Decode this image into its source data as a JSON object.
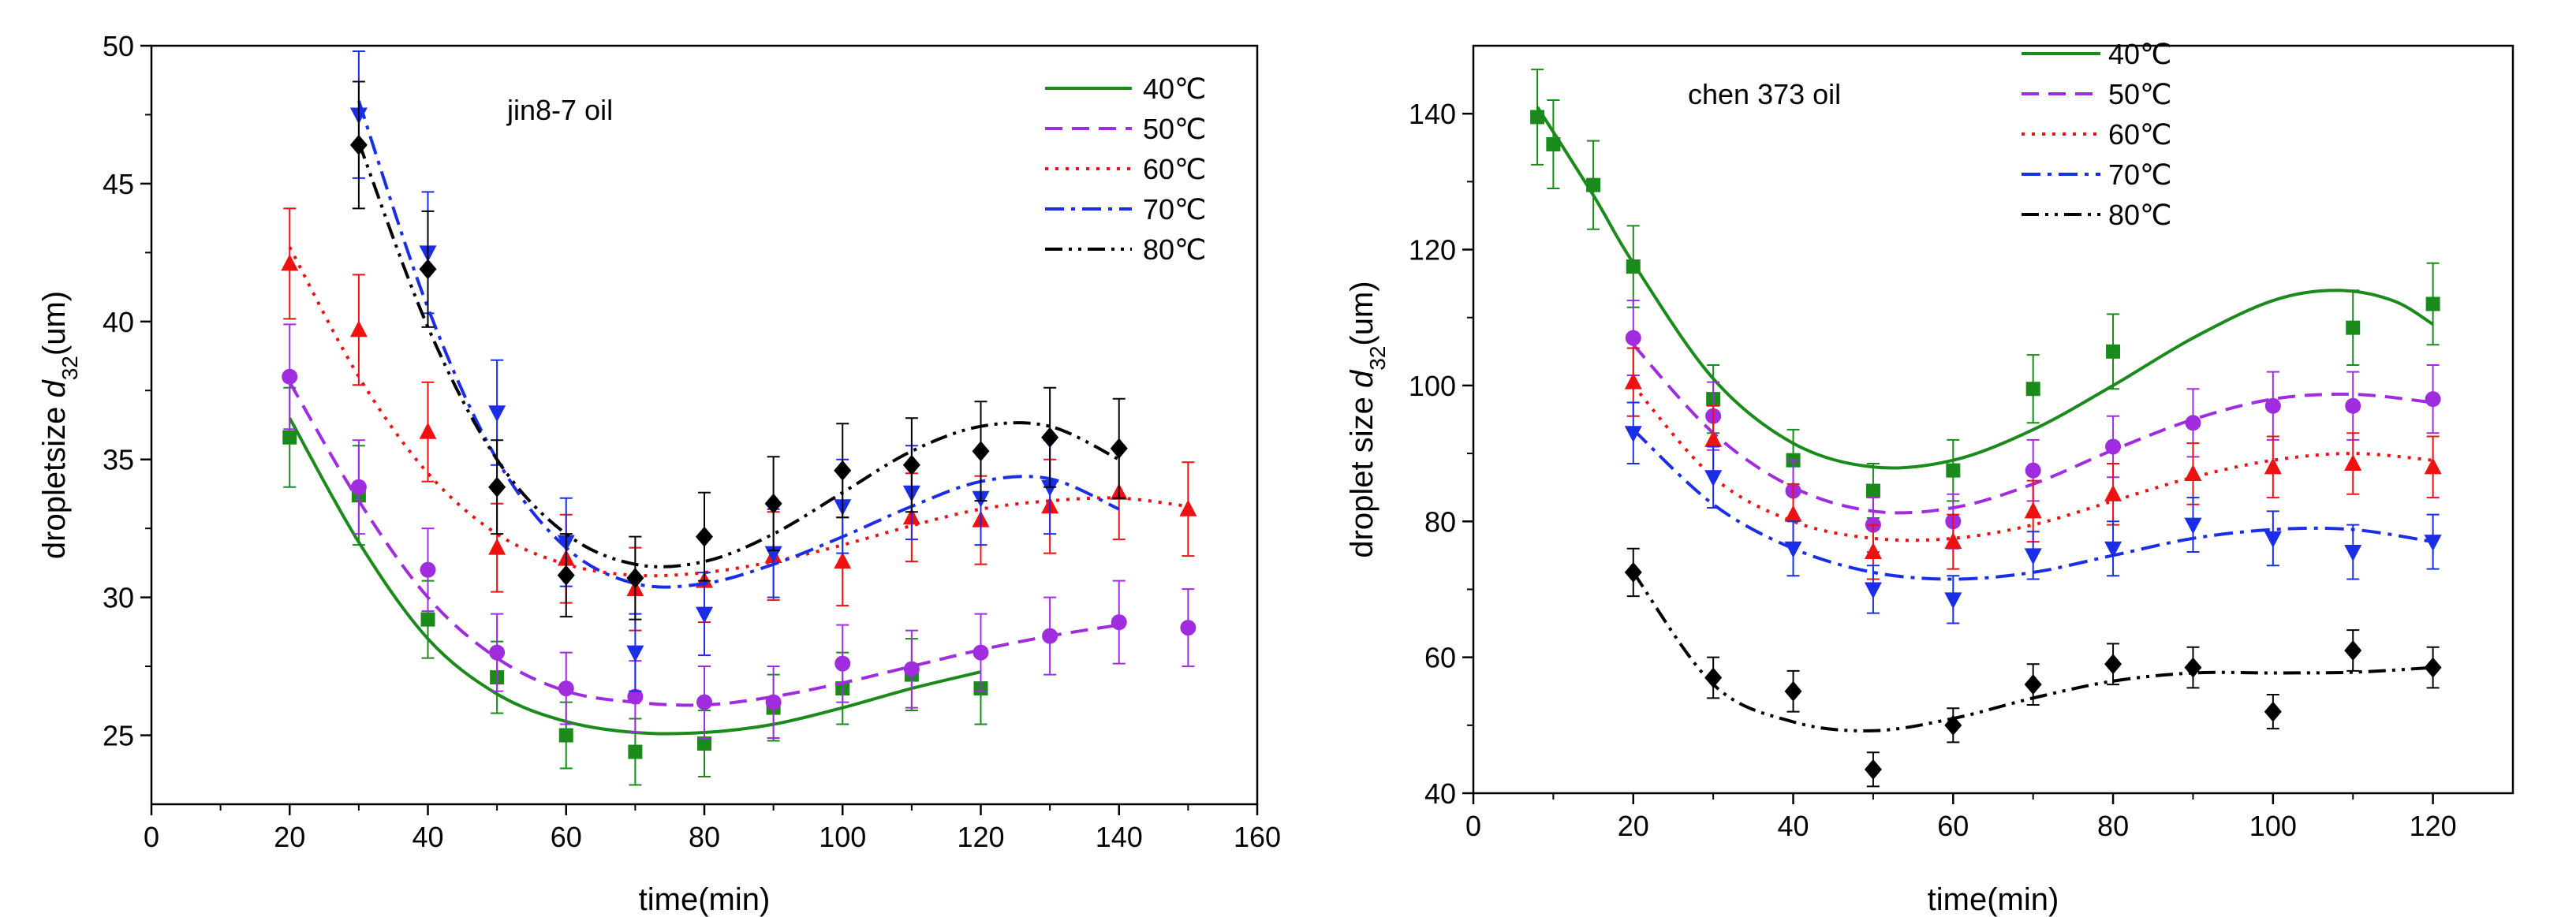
{
  "chart_data": [
    {
      "type": "scatter",
      "title": "",
      "annotation": "jin8-7 oil",
      "xlabel": "time(min)",
      "ylabel_prefix": "dropletsize ",
      "ylabel_var": "d",
      "ylabel_sub": "32",
      "ylabel_suffix": "(um)",
      "xlim": [
        0,
        160
      ],
      "ylim": [
        22.5,
        50
      ],
      "xticks": [
        0,
        20,
        40,
        60,
        80,
        100,
        120,
        140,
        160
      ],
      "yticks": [
        25,
        30,
        35,
        40,
        45,
        50
      ],
      "legend_position": "top-right",
      "series": [
        {
          "name": "40℃",
          "color": "#1a8a1a",
          "marker": "square",
          "line": "solid",
          "x": [
            20,
            30,
            40,
            50,
            60,
            70,
            80,
            90,
            100,
            110,
            120
          ],
          "y": [
            35.8,
            33.7,
            29.2,
            27.1,
            25.0,
            24.4,
            24.7,
            26.0,
            26.7,
            27.2,
            26.7
          ],
          "err": [
            1.8,
            1.8,
            1.4,
            1.3,
            1.2,
            1.2,
            1.2,
            1.2,
            1.3,
            1.3,
            1.3
          ],
          "fit_x": [
            20,
            30,
            40,
            50,
            60,
            70,
            80,
            90,
            100,
            110,
            120
          ],
          "fit_y": [
            36.5,
            32.0,
            28.5,
            26.5,
            25.5,
            25.1,
            25.1,
            25.4,
            26.0,
            26.7,
            27.3
          ]
        },
        {
          "name": "50℃",
          "color": "#a02ce0",
          "marker": "circle",
          "line": "dash",
          "x": [
            20,
            30,
            40,
            50,
            60,
            70,
            80,
            90,
            100,
            110,
            120,
            130,
            140,
            150
          ],
          "y": [
            38.0,
            34.0,
            31.0,
            28.0,
            26.7,
            26.4,
            26.2,
            26.2,
            27.6,
            27.4,
            28.0,
            28.6,
            29.1,
            28.9
          ],
          "err": [
            1.9,
            1.7,
            1.5,
            1.4,
            1.3,
            1.3,
            1.3,
            1.3,
            1.4,
            1.4,
            1.4,
            1.4,
            1.5,
            1.4
          ],
          "fit_x": [
            20,
            30,
            40,
            50,
            60,
            70,
            80,
            90,
            100,
            110,
            120,
            130,
            140
          ],
          "fit_y": [
            37.8,
            33.5,
            30.0,
            27.8,
            26.6,
            26.2,
            26.1,
            26.4,
            26.9,
            27.5,
            28.1,
            28.6,
            29.0
          ]
        },
        {
          "name": "60℃",
          "color": "#ee1111",
          "marker": "triangle-up",
          "line": "dot",
          "x": [
            20,
            30,
            40,
            50,
            60,
            70,
            80,
            90,
            100,
            110,
            120,
            130,
            140,
            150
          ],
          "y": [
            42.1,
            39.7,
            36.0,
            31.8,
            31.4,
            30.3,
            30.6,
            31.5,
            31.3,
            32.9,
            32.8,
            33.3,
            33.8,
            33.2
          ],
          "err": [
            2.0,
            2.0,
            1.8,
            1.6,
            1.6,
            1.5,
            1.5,
            1.6,
            1.6,
            1.6,
            1.6,
            1.7,
            1.7,
            1.7
          ],
          "fit_x": [
            20,
            30,
            40,
            50,
            60,
            70,
            80,
            90,
            100,
            110,
            120,
            130,
            140,
            150
          ],
          "fit_y": [
            42.7,
            38.0,
            34.5,
            32.3,
            31.2,
            30.8,
            30.9,
            31.3,
            31.9,
            32.6,
            33.2,
            33.5,
            33.6,
            33.3
          ]
        },
        {
          "name": "70℃",
          "color": "#1a2ee8",
          "marker": "triangle-down",
          "line": "dashdot",
          "x": [
            30,
            40,
            50,
            60,
            70,
            80,
            90,
            100,
            110,
            120,
            130
          ],
          "y": [
            47.5,
            42.5,
            36.7,
            32.0,
            28.0,
            29.4,
            31.6,
            33.3,
            33.8,
            33.6,
            34.0
          ],
          "err": [
            2.3,
            2.2,
            1.9,
            1.6,
            1.4,
            1.5,
            1.6,
            1.7,
            1.7,
            1.7,
            1.7
          ],
          "fit_x": [
            30,
            40,
            50,
            60,
            70,
            80,
            90,
            100,
            110,
            120,
            130,
            140
          ],
          "fit_y": [
            48.0,
            40.5,
            35.0,
            31.8,
            30.5,
            30.5,
            31.2,
            32.2,
            33.3,
            34.2,
            34.3,
            33.2
          ]
        },
        {
          "name": "80℃",
          "color": "#000000",
          "marker": "diamond",
          "line": "dashdotdot",
          "x": [
            30,
            40,
            50,
            60,
            70,
            80,
            90,
            100,
            110,
            120,
            130,
            140
          ],
          "y": [
            46.4,
            41.9,
            34.0,
            30.8,
            30.7,
            32.2,
            33.4,
            34.6,
            34.8,
            35.3,
            35.8,
            35.4
          ],
          "err": [
            2.3,
            2.1,
            1.7,
            1.5,
            1.5,
            1.6,
            1.7,
            1.7,
            1.7,
            1.8,
            1.8,
            1.8
          ],
          "fit_x": [
            30,
            40,
            50,
            60,
            70,
            80,
            90,
            100,
            110,
            120,
            130,
            140
          ],
          "fit_y": [
            46.5,
            39.8,
            35.0,
            32.3,
            31.2,
            31.3,
            32.3,
            33.8,
            35.3,
            36.2,
            36.2,
            35.0
          ]
        }
      ]
    },
    {
      "type": "scatter",
      "title": "",
      "annotation": "chen 373 oil",
      "xlabel": "time(min)",
      "ylabel_prefix": "droplet size ",
      "ylabel_var": "d",
      "ylabel_sub": "32",
      "ylabel_suffix": "(um)",
      "xlim": [
        0,
        130
      ],
      "ylim": [
        40,
        150
      ],
      "xticks": [
        0,
        20,
        40,
        60,
        80,
        100,
        120
      ],
      "yticks": [
        40,
        60,
        80,
        100,
        120,
        140
      ],
      "legend_position": "top-center",
      "series": [
        {
          "name": "40℃",
          "color": "#1a8a1a",
          "marker": "square",
          "line": "solid",
          "x": [
            8,
            10,
            15,
            20,
            30,
            40,
            50,
            60,
            70,
            80,
            110,
            120
          ],
          "y": [
            139.5,
            135.5,
            129.5,
            117.5,
            98.0,
            89.0,
            84.5,
            87.5,
            99.5,
            105.0,
            108.5,
            112.0
          ],
          "err": [
            7,
            6.5,
            6.5,
            6,
            5,
            4.5,
            4,
            4.5,
            5,
            5.5,
            5.5,
            6
          ],
          "fit_x": [
            8,
            15,
            20,
            30,
            40,
            50,
            60,
            70,
            80,
            90,
            100,
            108,
            115,
            120
          ],
          "fit_y": [
            141.0,
            128.0,
            118.0,
            101.0,
            91.5,
            88.0,
            89.0,
            93.5,
            100.0,
            107.0,
            112.5,
            114.0,
            112.5,
            109.0
          ]
        },
        {
          "name": "50℃",
          "color": "#a02ce0",
          "marker": "circle",
          "line": "dash",
          "x": [
            20,
            30,
            40,
            50,
            60,
            70,
            80,
            90,
            100,
            110,
            120
          ],
          "y": [
            107.0,
            95.5,
            84.5,
            79.5,
            80.0,
            87.5,
            91.0,
            94.5,
            97.0,
            97.0,
            98.0
          ],
          "err": [
            5.5,
            5,
            4.5,
            4,
            4,
            4.5,
            4.5,
            5,
            5,
            5,
            5
          ],
          "fit_x": [
            20,
            30,
            40,
            50,
            60,
            70,
            80,
            90,
            100,
            110,
            120
          ],
          "fit_y": [
            106.0,
            93.0,
            85.0,
            81.5,
            82.0,
            85.5,
            90.5,
            95.0,
            98.0,
            98.7,
            97.5
          ]
        },
        {
          "name": "60℃",
          "color": "#ee1111",
          "marker": "triangle-up",
          "line": "dot",
          "x": [
            20,
            30,
            40,
            50,
            60,
            70,
            80,
            90,
            100,
            110,
            120
          ],
          "y": [
            100.5,
            92.0,
            81.0,
            75.5,
            77.0,
            81.5,
            84.0,
            87.0,
            88.0,
            88.5,
            88.0
          ],
          "err": [
            5,
            5,
            4.5,
            4,
            4,
            4.5,
            4.5,
            4.5,
            4.5,
            4.5,
            4.5
          ],
          "fit_x": [
            20,
            30,
            40,
            50,
            60,
            70,
            80,
            90,
            100,
            110,
            120
          ],
          "fit_y": [
            100.0,
            86.5,
            80.0,
            77.5,
            77.5,
            79.5,
            83.0,
            86.5,
            89.0,
            90.0,
            89.0
          ]
        },
        {
          "name": "70℃",
          "color": "#1a2ee8",
          "marker": "triangle-down",
          "line": "dashdot",
          "x": [
            20,
            30,
            40,
            50,
            60,
            70,
            80,
            90,
            100,
            110,
            120
          ],
          "y": [
            93.0,
            86.5,
            76.0,
            70.0,
            68.5,
            75.0,
            76.0,
            79.5,
            77.5,
            75.5,
            77.0
          ],
          "err": [
            4.5,
            4.5,
            4,
            3.5,
            3.5,
            3.5,
            4,
            4,
            4,
            4,
            4
          ],
          "fit_x": [
            20,
            30,
            40,
            50,
            60,
            70,
            80,
            90,
            100,
            110,
            120
          ],
          "fit_y": [
            93.5,
            82.5,
            76.0,
            72.5,
            71.5,
            72.5,
            75.0,
            77.5,
            78.8,
            78.8,
            77.0
          ]
        },
        {
          "name": "80℃",
          "color": "#000000",
          "marker": "diamond",
          "line": "dashdotdot",
          "x": [
            20,
            30,
            40,
            50,
            60,
            70,
            80,
            90,
            100,
            110,
            120
          ],
          "y": [
            72.5,
            57.0,
            55.0,
            43.5,
            50.0,
            56.0,
            59.0,
            58.5,
            52.0,
            61.0,
            58.5
          ],
          "err": [
            3.5,
            3,
            3,
            2.5,
            2.5,
            3,
            3,
            3,
            2.5,
            3,
            3
          ],
          "fit_x": [
            20,
            30,
            40,
            50,
            60,
            70,
            80,
            90,
            100,
            110,
            120
          ],
          "fit_y": [
            72.5,
            56.0,
            50.5,
            49.2,
            51.0,
            54.0,
            56.5,
            57.7,
            57.7,
            57.8,
            58.5
          ]
        }
      ]
    }
  ]
}
